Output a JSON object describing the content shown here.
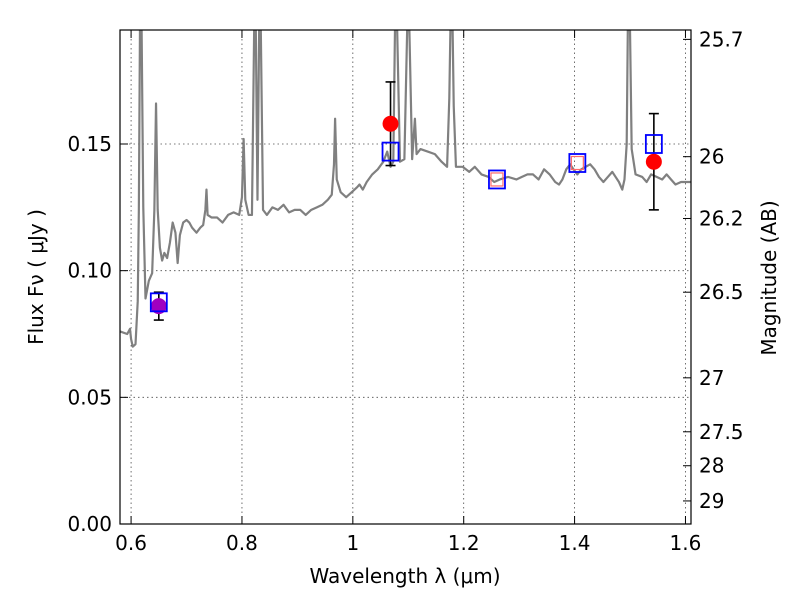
{
  "chart_data": {
    "type": "line",
    "xlabel": "Wavelength  λ (μm)",
    "ylabel": "Flux  Fν  ( μJy )",
    "ylabel_right": "Magnitude (AB)",
    "xlim": [
      0.58,
      1.61
    ],
    "ylim": [
      0.0,
      0.195
    ],
    "grid": true,
    "x_ticks": [
      0.6,
      0.8,
      1.0,
      1.2,
      1.4,
      1.6
    ],
    "x_tick_labels": [
      "0.6",
      "0.8",
      "1",
      "1.2",
      "1.4",
      "1.6"
    ],
    "y_ticks": [
      0.0,
      0.05,
      0.1,
      0.15
    ],
    "y_tick_labels": [
      "0.00",
      "0.05",
      "0.10",
      "0.15"
    ],
    "right_ticks": [
      {
        "label": "25.7",
        "flux": 0.1913
      },
      {
        "label": "26",
        "flux": 0.145
      },
      {
        "label": "26.2",
        "flux": 0.1206
      },
      {
        "label": "26.5",
        "flux": 0.0915
      },
      {
        "label": "27",
        "flux": 0.0577
      },
      {
        "label": "27.5",
        "flux": 0.0364
      },
      {
        "label": "28",
        "flux": 0.023
      },
      {
        "label": "29",
        "flux": 0.0091
      }
    ],
    "series": [
      {
        "kind": "spectrum",
        "color": "#808080",
        "points": [
          [
            0.58,
            0.076
          ],
          [
            0.593,
            0.075
          ],
          [
            0.598,
            0.077
          ],
          [
            0.6,
            0.073
          ],
          [
            0.603,
            0.07
          ],
          [
            0.608,
            0.071
          ],
          [
            0.612,
            0.088
          ],
          [
            0.614,
            0.124
          ],
          [
            0.616,
            0.195
          ],
          [
            0.619,
            0.195
          ],
          [
            0.622,
            0.125
          ],
          [
            0.626,
            0.089
          ],
          [
            0.632,
            0.096
          ],
          [
            0.638,
            0.099
          ],
          [
            0.642,
            0.124
          ],
          [
            0.645,
            0.166
          ],
          [
            0.648,
            0.124
          ],
          [
            0.652,
            0.109
          ],
          [
            0.656,
            0.104
          ],
          [
            0.66,
            0.107
          ],
          [
            0.665,
            0.105
          ],
          [
            0.67,
            0.111
          ],
          [
            0.675,
            0.119
          ],
          [
            0.68,
            0.115
          ],
          [
            0.684,
            0.103
          ],
          [
            0.688,
            0.114
          ],
          [
            0.694,
            0.119
          ],
          [
            0.7,
            0.12
          ],
          [
            0.705,
            0.119
          ],
          [
            0.71,
            0.117
          ],
          [
            0.718,
            0.115
          ],
          [
            0.725,
            0.117
          ],
          [
            0.73,
            0.118
          ],
          [
            0.734,
            0.124
          ],
          [
            0.736,
            0.132
          ],
          [
            0.738,
            0.122
          ],
          [
            0.745,
            0.121
          ],
          [
            0.755,
            0.121
          ],
          [
            0.765,
            0.119
          ],
          [
            0.775,
            0.122
          ],
          [
            0.785,
            0.123
          ],
          [
            0.795,
            0.122
          ],
          [
            0.8,
            0.129
          ],
          [
            0.803,
            0.152
          ],
          [
            0.806,
            0.128
          ],
          [
            0.812,
            0.122
          ],
          [
            0.818,
            0.122
          ],
          [
            0.822,
            0.195
          ],
          [
            0.825,
            0.195
          ],
          [
            0.828,
            0.128
          ],
          [
            0.831,
            0.195
          ],
          [
            0.834,
            0.195
          ],
          [
            0.838,
            0.124
          ],
          [
            0.845,
            0.122
          ],
          [
            0.855,
            0.125
          ],
          [
            0.865,
            0.124
          ],
          [
            0.875,
            0.126
          ],
          [
            0.885,
            0.123
          ],
          [
            0.895,
            0.124
          ],
          [
            0.905,
            0.124
          ],
          [
            0.915,
            0.122
          ],
          [
            0.925,
            0.124
          ],
          [
            0.935,
            0.125
          ],
          [
            0.945,
            0.126
          ],
          [
            0.955,
            0.128
          ],
          [
            0.962,
            0.13
          ],
          [
            0.966,
            0.142
          ],
          [
            0.968,
            0.16
          ],
          [
            0.971,
            0.136
          ],
          [
            0.978,
            0.131
          ],
          [
            0.988,
            0.129
          ],
          [
            0.998,
            0.131
          ],
          [
            1.008,
            0.133
          ],
          [
            1.012,
            0.134
          ],
          [
            1.018,
            0.132
          ],
          [
            1.025,
            0.135
          ],
          [
            1.035,
            0.138
          ],
          [
            1.045,
            0.14
          ],
          [
            1.055,
            0.143
          ],
          [
            1.062,
            0.147
          ],
          [
            1.068,
            0.141
          ],
          [
            1.073,
            0.143
          ],
          [
            1.076,
            0.195
          ],
          [
            1.08,
            0.195
          ],
          [
            1.085,
            0.143
          ],
          [
            1.093,
            0.144
          ],
          [
            1.098,
            0.195
          ],
          [
            1.102,
            0.195
          ],
          [
            1.107,
            0.144
          ],
          [
            1.112,
            0.16
          ],
          [
            1.115,
            0.146
          ],
          [
            1.122,
            0.148
          ],
          [
            1.135,
            0.147
          ],
          [
            1.148,
            0.146
          ],
          [
            1.16,
            0.143
          ],
          [
            1.17,
            0.141
          ],
          [
            1.174,
            0.168
          ],
          [
            1.176,
            0.195
          ],
          [
            1.18,
            0.195
          ],
          [
            1.182,
            0.165
          ],
          [
            1.186,
            0.141
          ],
          [
            1.198,
            0.141
          ],
          [
            1.21,
            0.139
          ],
          [
            1.22,
            0.141
          ],
          [
            1.232,
            0.138
          ],
          [
            1.245,
            0.137
          ],
          [
            1.255,
            0.135
          ],
          [
            1.265,
            0.136
          ],
          [
            1.28,
            0.137
          ],
          [
            1.295,
            0.136
          ],
          [
            1.305,
            0.137
          ],
          [
            1.315,
            0.138
          ],
          [
            1.325,
            0.138
          ],
          [
            1.335,
            0.136
          ],
          [
            1.345,
            0.14
          ],
          [
            1.355,
            0.138
          ],
          [
            1.365,
            0.135
          ],
          [
            1.372,
            0.134
          ],
          [
            1.378,
            0.136
          ],
          [
            1.385,
            0.14
          ],
          [
            1.392,
            0.142
          ],
          [
            1.398,
            0.14
          ],
          [
            1.405,
            0.138
          ],
          [
            1.412,
            0.14
          ],
          [
            1.42,
            0.141
          ],
          [
            1.428,
            0.142
          ],
          [
            1.436,
            0.14
          ],
          [
            1.444,
            0.137
          ],
          [
            1.452,
            0.135
          ],
          [
            1.46,
            0.137
          ],
          [
            1.468,
            0.139
          ],
          [
            1.474,
            0.137
          ],
          [
            1.48,
            0.135
          ],
          [
            1.486,
            0.132
          ],
          [
            1.49,
            0.136
          ],
          [
            1.494,
            0.15
          ],
          [
            1.496,
            0.195
          ],
          [
            1.5,
            0.195
          ],
          [
            1.503,
            0.148
          ],
          [
            1.51,
            0.138
          ],
          [
            1.522,
            0.137
          ],
          [
            1.53,
            0.135
          ],
          [
            1.538,
            0.138
          ],
          [
            1.548,
            0.137
          ],
          [
            1.558,
            0.136
          ],
          [
            1.566,
            0.138
          ],
          [
            1.574,
            0.136
          ],
          [
            1.582,
            0.134
          ],
          [
            1.592,
            0.135
          ],
          [
            1.61,
            0.135
          ]
        ]
      },
      {
        "kind": "observed",
        "color": "#ff0000",
        "points": [
          {
            "x": 1.068,
            "y": 0.158,
            "err": 0.0165
          },
          {
            "x": 1.543,
            "y": 0.143,
            "err": 0.019
          }
        ]
      },
      {
        "kind": "observed",
        "color": "#a000c0",
        "points": [
          {
            "x": 0.65,
            "y": 0.086,
            "err": 0.0055
          }
        ]
      },
      {
        "kind": "model",
        "color": "#0000ff",
        "points": [
          {
            "x": 0.65,
            "y": 0.0875
          },
          {
            "x": 1.068,
            "y": 0.147
          },
          {
            "x": 1.26,
            "y": 0.136
          },
          {
            "x": 1.405,
            "y": 0.1425
          },
          {
            "x": 1.543,
            "y": 0.15
          }
        ]
      },
      {
        "kind": "model-inner",
        "color": "#ff6a6a",
        "points": [
          {
            "x": 1.26,
            "y": 0.136
          },
          {
            "x": 1.405,
            "y": 0.1425
          }
        ]
      }
    ]
  }
}
